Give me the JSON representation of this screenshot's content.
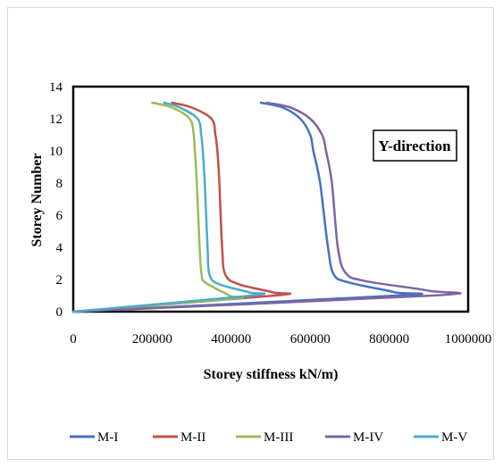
{
  "chart_data": {
    "type": "line",
    "title": "",
    "xlabel": "Storey stiffness kN/m)",
    "ylabel": "Storey Number",
    "xlim": [
      0,
      1000000
    ],
    "ylim": [
      0,
      14
    ],
    "x_ticks": [
      "0",
      "200000",
      "400000",
      "600000",
      "800000",
      "1000000"
    ],
    "y_ticks": [
      "0",
      "2",
      "4",
      "6",
      "8",
      "10",
      "12",
      "14"
    ],
    "annotation": "Y-direction",
    "legend_position": "bottom",
    "grid": false,
    "series": [
      {
        "name": "M-I",
        "color": "#4472c4",
        "points": [
          [
            0,
            0
          ],
          [
            820000,
            1.0
          ],
          [
            815000,
            1.2
          ],
          [
            700000,
            1.8
          ],
          [
            660000,
            2.3
          ],
          [
            645000,
            4
          ],
          [
            625000,
            8
          ],
          [
            608000,
            10
          ],
          [
            600000,
            11
          ],
          [
            575000,
            12
          ],
          [
            530000,
            12.7
          ],
          [
            475000,
            13
          ]
        ]
      },
      {
        "name": "M-II",
        "color": "#c0504d",
        "points": [
          [
            0,
            0
          ],
          [
            510000,
            1.0
          ],
          [
            505000,
            1.2
          ],
          [
            420000,
            1.7
          ],
          [
            385000,
            2.3
          ],
          [
            377000,
            4
          ],
          [
            370000,
            8
          ],
          [
            365000,
            10
          ],
          [
            360000,
            11
          ],
          [
            350000,
            12
          ],
          [
            300000,
            12.7
          ],
          [
            250000,
            13
          ]
        ]
      },
      {
        "name": "M-III",
        "color": "#9bbb59",
        "points": [
          [
            0,
            0
          ],
          [
            400000,
            0.8
          ],
          [
            395000,
            1.0
          ],
          [
            335000,
            1.8
          ],
          [
            325000,
            2.3
          ],
          [
            320000,
            4
          ],
          [
            313000,
            8
          ],
          [
            308000,
            10
          ],
          [
            305000,
            11
          ],
          [
            295000,
            12
          ],
          [
            250000,
            12.7
          ],
          [
            200000,
            13
          ]
        ]
      },
      {
        "name": "M-IV",
        "color": "#8064a2",
        "points": [
          [
            0,
            0
          ],
          [
            910000,
            1.0
          ],
          [
            900000,
            1.3
          ],
          [
            740000,
            1.9
          ],
          [
            690000,
            2.4
          ],
          [
            670000,
            4
          ],
          [
            655000,
            8
          ],
          [
            640000,
            10
          ],
          [
            630000,
            11
          ],
          [
            600000,
            12
          ],
          [
            550000,
            12.7
          ],
          [
            490000,
            13
          ]
        ]
      },
      {
        "name": "M-V",
        "color": "#4bacc6",
        "points": [
          [
            0,
            0
          ],
          [
            450000,
            1.0
          ],
          [
            445000,
            1.2
          ],
          [
            370000,
            1.7
          ],
          [
            345000,
            2.3
          ],
          [
            340000,
            4
          ],
          [
            333000,
            8
          ],
          [
            328000,
            10
          ],
          [
            324000,
            11
          ],
          [
            315000,
            12
          ],
          [
            270000,
            12.7
          ],
          [
            230000,
            13
          ]
        ]
      }
    ]
  }
}
